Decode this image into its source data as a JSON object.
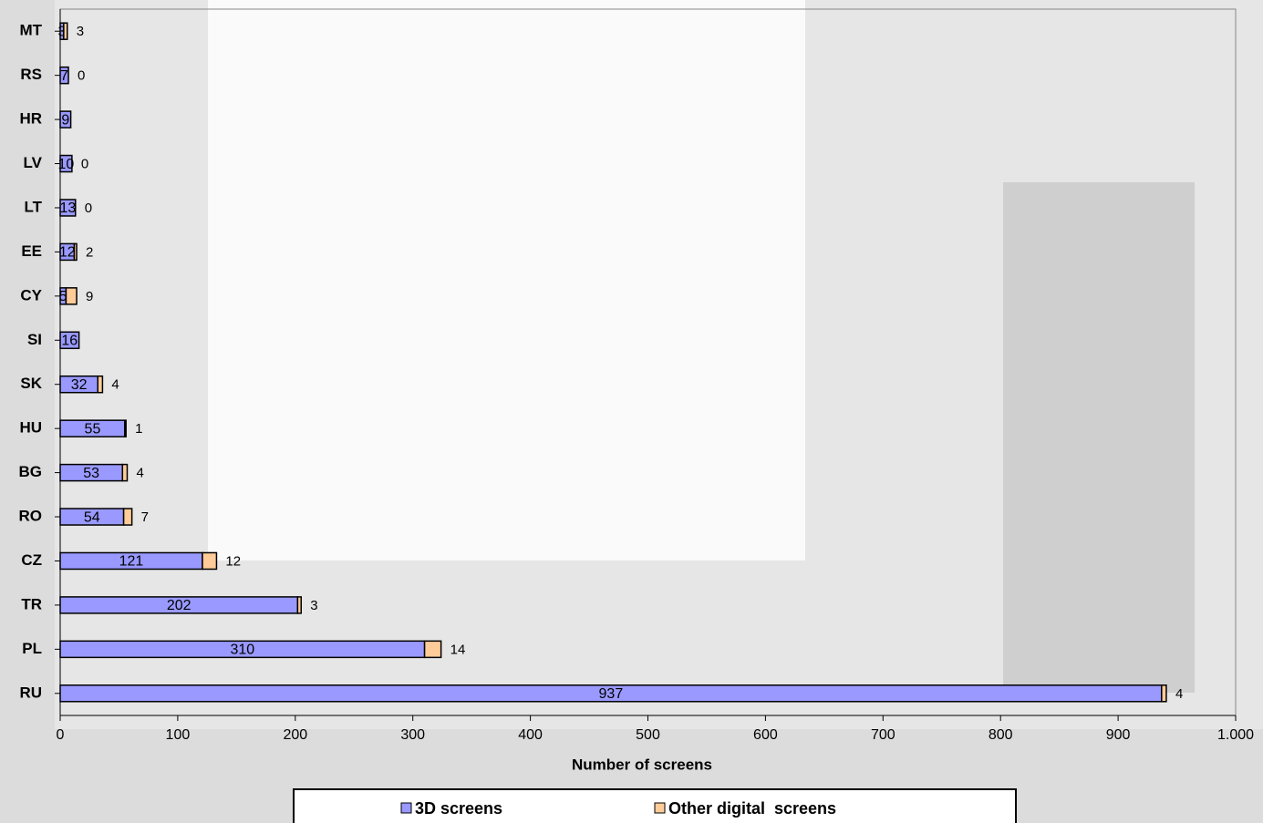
{
  "chart_data": {
    "type": "bar",
    "horizontal": true,
    "stacked": true,
    "x_label": "Number of screens",
    "categories": [
      "MT",
      "RS",
      "HR",
      "LV",
      "LT",
      "EE",
      "CY",
      "SI",
      "SK",
      "HU",
      "BG",
      "RO",
      "CZ",
      "TR",
      "PL",
      "RU"
    ],
    "series": [
      {
        "name": "3D screens",
        "color": "#9999ff",
        "values": [
          3,
          7,
          9,
          10,
          13,
          12,
          5,
          16,
          32,
          55,
          53,
          54,
          121,
          202,
          310,
          937
        ]
      },
      {
        "name": "Other digital  screens",
        "color": "#ffcc99",
        "values": [
          3,
          0,
          null,
          0,
          0,
          2,
          9,
          null,
          4,
          1,
          4,
          7,
          12,
          3,
          14,
          4
        ]
      }
    ],
    "xlim": [
      0,
      1000
    ],
    "xticks": [
      0,
      100,
      200,
      300,
      400,
      500,
      600,
      700,
      800,
      900,
      {
        "value": 1000,
        "label": "1.000"
      }
    ],
    "legend": "bottom"
  }
}
